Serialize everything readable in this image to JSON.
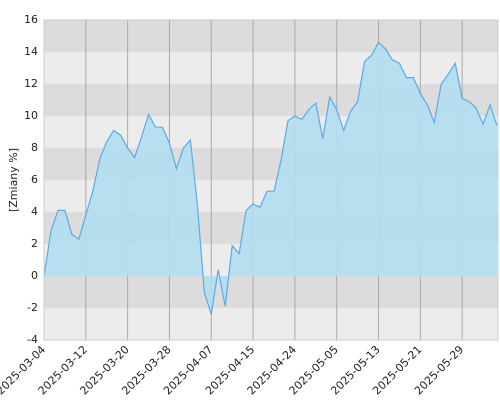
{
  "chart_data": {
    "type": "area",
    "y_label": "[Zmiany %]",
    "categories": [
      "2025-03-04",
      null,
      null,
      null,
      null,
      null,
      "2025-03-12",
      null,
      null,
      null,
      null,
      null,
      "2025-03-20",
      null,
      null,
      null,
      null,
      null,
      "2025-03-28",
      null,
      null,
      null,
      null,
      null,
      "2025-04-07",
      null,
      null,
      null,
      null,
      null,
      "2025-04-15",
      null,
      null,
      null,
      null,
      null,
      "2025-04-24",
      null,
      null,
      null,
      null,
      null,
      "2025-05-05",
      null,
      null,
      null,
      null,
      null,
      "2025-05-13",
      null,
      null,
      null,
      null,
      null,
      "2025-05-21",
      null,
      null,
      null,
      null,
      null,
      "2025-05-29",
      null,
      null,
      null,
      null,
      null
    ],
    "values": [
      0,
      2.8,
      4.1,
      4.1,
      2.6,
      2.3,
      3.8,
      5.3,
      7.3,
      8.4,
      9.1,
      8.8,
      8.0,
      7.4,
      8.7,
      10.1,
      9.3,
      9.3,
      8.3,
      6.7,
      8.0,
      8.5,
      4.5,
      -1.0,
      -2.4,
      0.4,
      -1.9,
      1.9,
      1.4,
      4.1,
      4.5,
      4.3,
      5.3,
      5.3,
      7.2,
      9.7,
      10.0,
      9.8,
      10.4,
      10.8,
      8.6,
      11.2,
      10.4,
      9.1,
      10.3,
      10.9,
      13.4,
      13.8,
      14.6,
      14.2,
      13.5,
      13.3,
      12.4,
      12.4,
      11.4,
      10.7,
      9.6,
      12.0,
      12.6,
      13.3,
      11.1,
      10.9,
      10.5,
      9.5,
      10.7,
      9.4
    ],
    "color": "#5aabe6",
    "fill": "#b3deef",
    "ylim": [
      -4,
      16
    ],
    "yticks": [
      -4,
      -2,
      0,
      2,
      4,
      6,
      8,
      10,
      12,
      14,
      16
    ],
    "grid": true
  }
}
